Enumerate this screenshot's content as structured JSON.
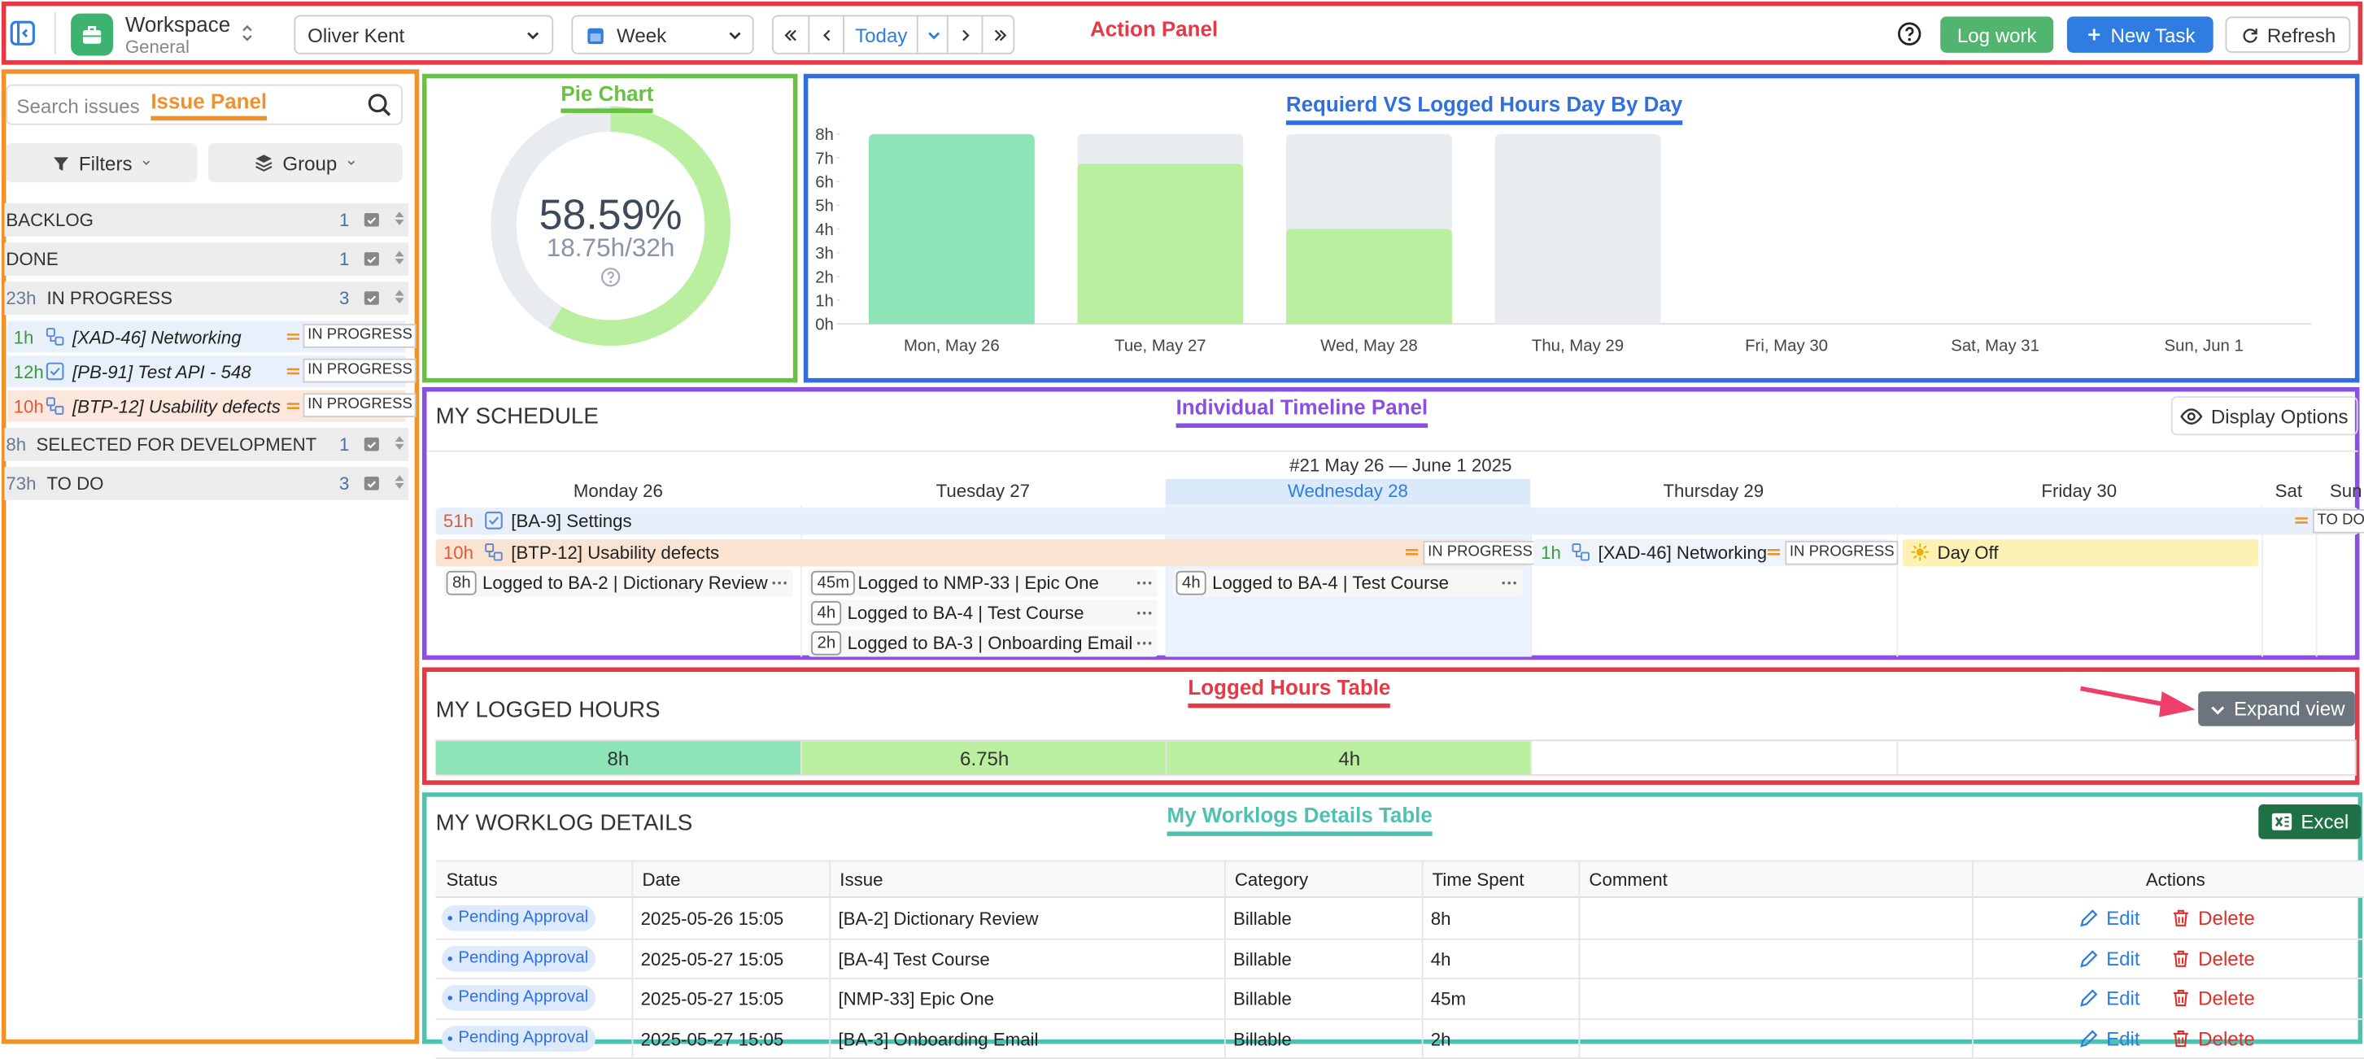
{
  "annotations": {
    "action_panel": "Action Panel",
    "issue_panel": "Issue Panel",
    "pie_chart": "Pie Chart",
    "bar_chart": "Requierd VS Logged Hours Day By Day",
    "timeline": "Individual Timeline Panel",
    "logged_table": "Logged Hours Table",
    "worklog_table": "My Worklogs Details Table"
  },
  "toolbar": {
    "workspace": "Workspace",
    "workspace_sub": "General",
    "user": "Oliver Kent",
    "period": "Week",
    "today": "Today",
    "log_work": "Log work",
    "new_task": "New Task",
    "refresh": "Refresh"
  },
  "issues": {
    "search_placeholder": "Search issues",
    "filters": "Filters",
    "group": "Group",
    "groups": [
      {
        "name": "BACKLOG",
        "count": 1
      },
      {
        "name": "DONE",
        "count": 1
      },
      {
        "hours": "23h",
        "name": "IN PROGRESS",
        "count": 3,
        "items": [
          {
            "hours": "1h",
            "name": "[XAD-46] Networking",
            "status": "IN PROGRESS"
          },
          {
            "hours": "12h",
            "name": "[PB-91] Test API - 548",
            "status": "IN PROGRESS"
          },
          {
            "hours": "10h",
            "name": "[BTP-12] Usability defects",
            "status": "IN PROGRESS"
          }
        ]
      },
      {
        "hours": "8h",
        "name": "SELECTED FOR DEVELOPMENT",
        "count": 1
      },
      {
        "hours": "73h",
        "name": "TO DO",
        "count": 3
      }
    ]
  },
  "chart_data": [
    {
      "type": "donut",
      "values": [
        58.59
      ],
      "value_labels": [
        "58.59%"
      ],
      "caption": "18.75h/32h",
      "color": "#b9ef9e",
      "track_color": "#e9ecef"
    },
    {
      "type": "bar",
      "categories": [
        "Mon, May 26",
        "Tue, May 27",
        "Wed, May 28",
        "Thu, May 29",
        "Fri, May 30",
        "Sat, May 31",
        "Sun, Jun 1"
      ],
      "series": [
        {
          "color": "#e9ecef",
          "values": [
            8,
            8,
            8,
            8,
            null,
            null,
            null
          ]
        },
        {
          "colors": [
            "#8de4b6",
            "#b9ef9e",
            "#b9ef9e",
            "#b9ef9e",
            null,
            null,
            null
          ],
          "values": [
            8,
            6.75,
            4,
            0,
            null,
            null,
            null
          ]
        }
      ],
      "ylim": [
        0,
        8
      ],
      "yticks": [
        {
          "value": 0,
          "label": "0h"
        },
        {
          "value": 1,
          "label": "1h"
        },
        {
          "value": 2,
          "label": "2h"
        },
        {
          "value": 3,
          "label": "3h"
        },
        {
          "value": 4,
          "label": "4h"
        },
        {
          "value": 5,
          "label": "5h"
        },
        {
          "value": 6,
          "label": "6h"
        },
        {
          "value": 7,
          "label": "7h"
        },
        {
          "value": 8,
          "label": "8h"
        }
      ]
    }
  ],
  "schedule": {
    "title": "MY SCHEDULE",
    "display_options": "Display Options",
    "week": "#21 May 26 — June 1 2025",
    "days": [
      "Monday 26",
      "Tuesday 27",
      "Wednesday 28",
      "Thursday 29",
      "Friday 30",
      "Sat",
      "Sun"
    ],
    "tasks": [
      {
        "hours": "51h",
        "name": "[BA-9] Settings",
        "status": "TO DO"
      },
      {
        "hours": "10h",
        "name": "[BTP-12] Usability defects",
        "status": "IN PROGRESS"
      },
      {
        "hours": "1h",
        "name": "[XAD-46] Networking",
        "status": "IN PROGRESS"
      },
      {
        "name": "Day Off"
      }
    ],
    "worklogs": [
      [
        {
          "time": "8h",
          "text": "Logged to BA-2 | Dictionary Review"
        }
      ],
      [
        {
          "time": "45m",
          "text": "Logged to NMP-33 | Epic One"
        },
        {
          "time": "4h",
          "text": "Logged to BA-4 | Test Course"
        },
        {
          "time": "2h",
          "text": "Logged to BA-3 | Onboarding Email"
        }
      ],
      [
        {
          "time": "4h",
          "text": "Logged to BA-4 | Test Course"
        }
      ]
    ]
  },
  "logged_hours": {
    "title": "MY LOGGED HOURS",
    "expand": "Expand view",
    "cells": [
      "8h",
      "6.75h",
      "4h"
    ],
    "colors": [
      "#8de4b6",
      "#b9ef9e",
      "#b9ef9e"
    ]
  },
  "worklog_details": {
    "title": "MY WORKLOG DETAILS",
    "excel": "Excel",
    "columns": [
      "Status",
      "Date",
      "Issue",
      "Category",
      "Time Spent",
      "Comment",
      "Actions"
    ],
    "rows": [
      [
        "Pending Approval",
        "2025-05-26 15:05",
        "[BA-2] Dictionary Review",
        "Billable",
        "8h"
      ],
      [
        "Pending Approval",
        "2025-05-27 15:05",
        "[BA-4] Test Course",
        "Billable",
        "4h"
      ],
      [
        "Pending Approval",
        "2025-05-27 15:05",
        "[NMP-33] Epic One",
        "Billable",
        "45m"
      ],
      [
        "Pending Approval",
        "2025-05-27 15:05",
        "[BA-3] Onboarding Email",
        "Billable",
        "2h"
      ]
    ],
    "edit": "Edit",
    "delete": "Delete"
  }
}
